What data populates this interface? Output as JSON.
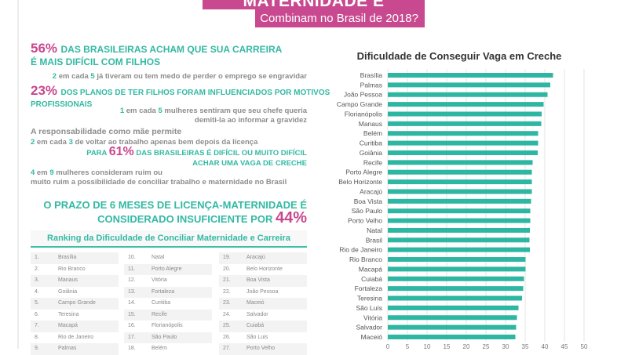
{
  "header": {
    "title": "MATERNIDADE E CARREIRA",
    "subtitle": "Combinam no Brasil de 2018?"
  },
  "stats": {
    "s1_pct": "56%",
    "s1_text_line1": "DAS BRASILEIRAS ACHAM QUE SUA CARREIRA",
    "s1_text_line2": "É MAIS DIFÍCIL COM FILHOS",
    "s2_a": "2",
    "s2_b": " em cada ",
    "s2_c": "5",
    "s2_d": " já tiveram ou tem medo de perder o emprego se engravidar",
    "s3_pct": "23%",
    "s3_text_line1": "DOS PLANOS DE TER FILHOS FORAM INFLUENCIADOS POR MOTIVOS",
    "s3_text_line2": "PROFISSIONAIS",
    "s4_a": "1",
    "s4_b": " em cada ",
    "s4_c": "5",
    "s4_d": " mulheres sentiram que seu chefe queria",
    "s4_line2": "demiti-la ao informar a gravidez",
    "s5_line1": "A responsabilidade como mãe permite",
    "s5_a": "2",
    "s5_b": " em cada ",
    "s5_c": "3",
    "s5_d": " de voltar ao trabalho apenas bem depois da licença",
    "s6_pre": "PARA ",
    "s6_pct": "61%",
    "s6_text_line1": " DAS BRASILEIRAS É DIFÍCIL OU MUITO DIFÍCIL",
    "s6_text_line2": "ACHAR UMA VAGA DE CRECHE",
    "s7_a": "4",
    "s7_b": " em ",
    "s7_c": "9",
    "s7_d": " mulheres consideram ruim ou",
    "s7_line2": "muito ruim a possibilidade de conciliar trabalho e maternidade no Brasil",
    "s8_line1": "O PRAZO DE 6 MESES DE LICENÇA-MATERNIDADE É",
    "s8_line2": "CONSIDERADO INSUFICIENTE POR ",
    "s8_pct": "44%"
  },
  "ranking": {
    "title": "Ranking da Dificuldade de Conciliar Maternidade e Carreira",
    "items": [
      {
        "n": "1.",
        "city": "Brasília"
      },
      {
        "n": "2.",
        "city": "Rio Branco"
      },
      {
        "n": "3.",
        "city": "Manaus"
      },
      {
        "n": "4.",
        "city": "Goiânia"
      },
      {
        "n": "5.",
        "city": "Campo Grande"
      },
      {
        "n": "6.",
        "city": "Teresina"
      },
      {
        "n": "7.",
        "city": "Macapá"
      },
      {
        "n": "8.",
        "city": "Rio de Janeiro"
      },
      {
        "n": "9.",
        "city": "Palmas"
      },
      {
        "n": "10.",
        "city": "Natal"
      },
      {
        "n": "11.",
        "city": "Porto Alegre"
      },
      {
        "n": "12.",
        "city": "Vitória"
      },
      {
        "n": "13.",
        "city": "Fortaleza"
      },
      {
        "n": "14.",
        "city": "Curitiba"
      },
      {
        "n": "15.",
        "city": "Recife"
      },
      {
        "n": "16.",
        "city": "Florianópolis"
      },
      {
        "n": "17.",
        "city": "São Paulo"
      },
      {
        "n": "18.",
        "city": "Belém"
      },
      {
        "n": "19.",
        "city": "Aracajú"
      },
      {
        "n": "20.",
        "city": "Belo Horizonte"
      },
      {
        "n": "21.",
        "city": "Boa Vista"
      },
      {
        "n": "22.",
        "city": "João Pessoa"
      },
      {
        "n": "23.",
        "city": "Maceió"
      },
      {
        "n": "24.",
        "city": "Salvador"
      },
      {
        "n": "25.",
        "city": "Cuiabá"
      },
      {
        "n": "26.",
        "city": "São Luis"
      },
      {
        "n": "27.",
        "city": "Porto Velho"
      }
    ]
  },
  "colors": {
    "pink": "#c8488f",
    "teal": "#33b9a3",
    "bar": "#2db6a1"
  },
  "chart_data": {
    "type": "bar",
    "orientation": "horizontal",
    "title": "Dificuldade de Conseguir Vaga em Creche",
    "categories": [
      "Brasília",
      "Palmas",
      "João Pessoa",
      "Campo Grande",
      "Florianópolis",
      "Manaus",
      "Belém",
      "Curitiba",
      "Goiânia",
      "Recife",
      "Porto Alegre",
      "Belo Horizonte",
      "Aracajú",
      "Boa Vista",
      "São Paulo",
      "Porto Velho",
      "Natal",
      "Brasil",
      "Rio de Janeiro",
      "Rio Branco",
      "Macapá",
      "Cuiabá",
      "Fortaleza",
      "Teresina",
      "São Luís",
      "Vitória",
      "Salvador",
      "Maceió"
    ],
    "values": [
      42.1,
      41.4,
      40.7,
      39.7,
      39.2,
      39.1,
      38.3,
      38.3,
      38.2,
      36.9,
      36.7,
      36.7,
      36.7,
      36.5,
      36.3,
      36.3,
      36.2,
      36.1,
      36.2,
      35.1,
      35.1,
      34.7,
      34.5,
      34.2,
      33.3,
      32.9,
      32.7,
      32.5
    ],
    "xlim": [
      0,
      50
    ],
    "xticks": [
      "0",
      "5",
      "10",
      "15",
      "20",
      "25",
      "30",
      "35",
      "40",
      "45",
      "50"
    ],
    "grid": true
  }
}
